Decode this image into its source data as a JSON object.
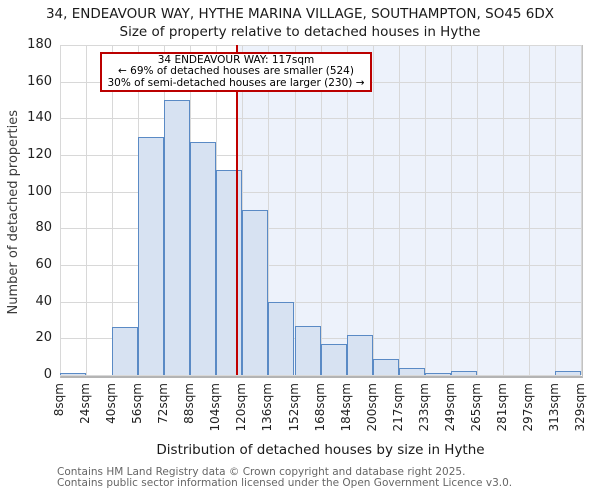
{
  "title": {
    "line1": "34, ENDEAVOUR WAY, HYTHE MARINA VILLAGE, SOUTHAMPTON, SO45 6DX",
    "line2": "Size of property relative to detached houses in Hythe"
  },
  "annotation": {
    "line1": "34 ENDEAVOUR WAY: 117sqm",
    "line2": "← 69% of detached houses are smaller (524)",
    "line3": "30% of semi-detached houses are larger (230) →"
  },
  "chart_data": {
    "type": "bar",
    "title": "34, ENDEAVOUR WAY, HYTHE MARINA VILLAGE, SOUTHAMPTON, SO45 6DX",
    "subtitle": "Size of property relative to detached houses in Hythe",
    "xlabel": "Distribution of detached houses by size in Hythe",
    "ylabel": "Number of detached properties",
    "categories": [
      "8sqm",
      "24sqm",
      "40sqm",
      "56sqm",
      "72sqm",
      "88sqm",
      "104sqm",
      "120sqm",
      "136sqm",
      "152sqm",
      "168sqm",
      "184sqm",
      "200sqm",
      "217sqm",
      "233sqm",
      "249sqm",
      "265sqm",
      "281sqm",
      "297sqm",
      "313sqm",
      "329sqm"
    ],
    "bin_edges_sqm": [
      8,
      24,
      40,
      56,
      72,
      88,
      104,
      120,
      136,
      152,
      168,
      184,
      200,
      217,
      233,
      249,
      265,
      281,
      297,
      313,
      329
    ],
    "values": [
      1,
      0,
      26,
      130,
      150,
      127,
      112,
      90,
      40,
      27,
      17,
      22,
      9,
      4,
      1,
      2,
      0,
      0,
      0,
      2
    ],
    "yticks": [
      0,
      20,
      40,
      60,
      80,
      100,
      120,
      140,
      160,
      180
    ],
    "ylim": [
      0,
      180
    ],
    "marker_value_sqm": 117,
    "grid": true,
    "colors": {
      "bar_fill": "#d7e2f2",
      "bar_border": "#5a8ac5",
      "marker_line": "#c00000",
      "annotation_border": "#bb0000",
      "highlight_region": "#edf2fb",
      "gridline": "#d8d8d8"
    }
  },
  "footer": {
    "line1": "Contains HM Land Registry data © Crown copyright and database right 2025.",
    "line2": "Contains public sector information licensed under the Open Government Licence v3.0."
  }
}
